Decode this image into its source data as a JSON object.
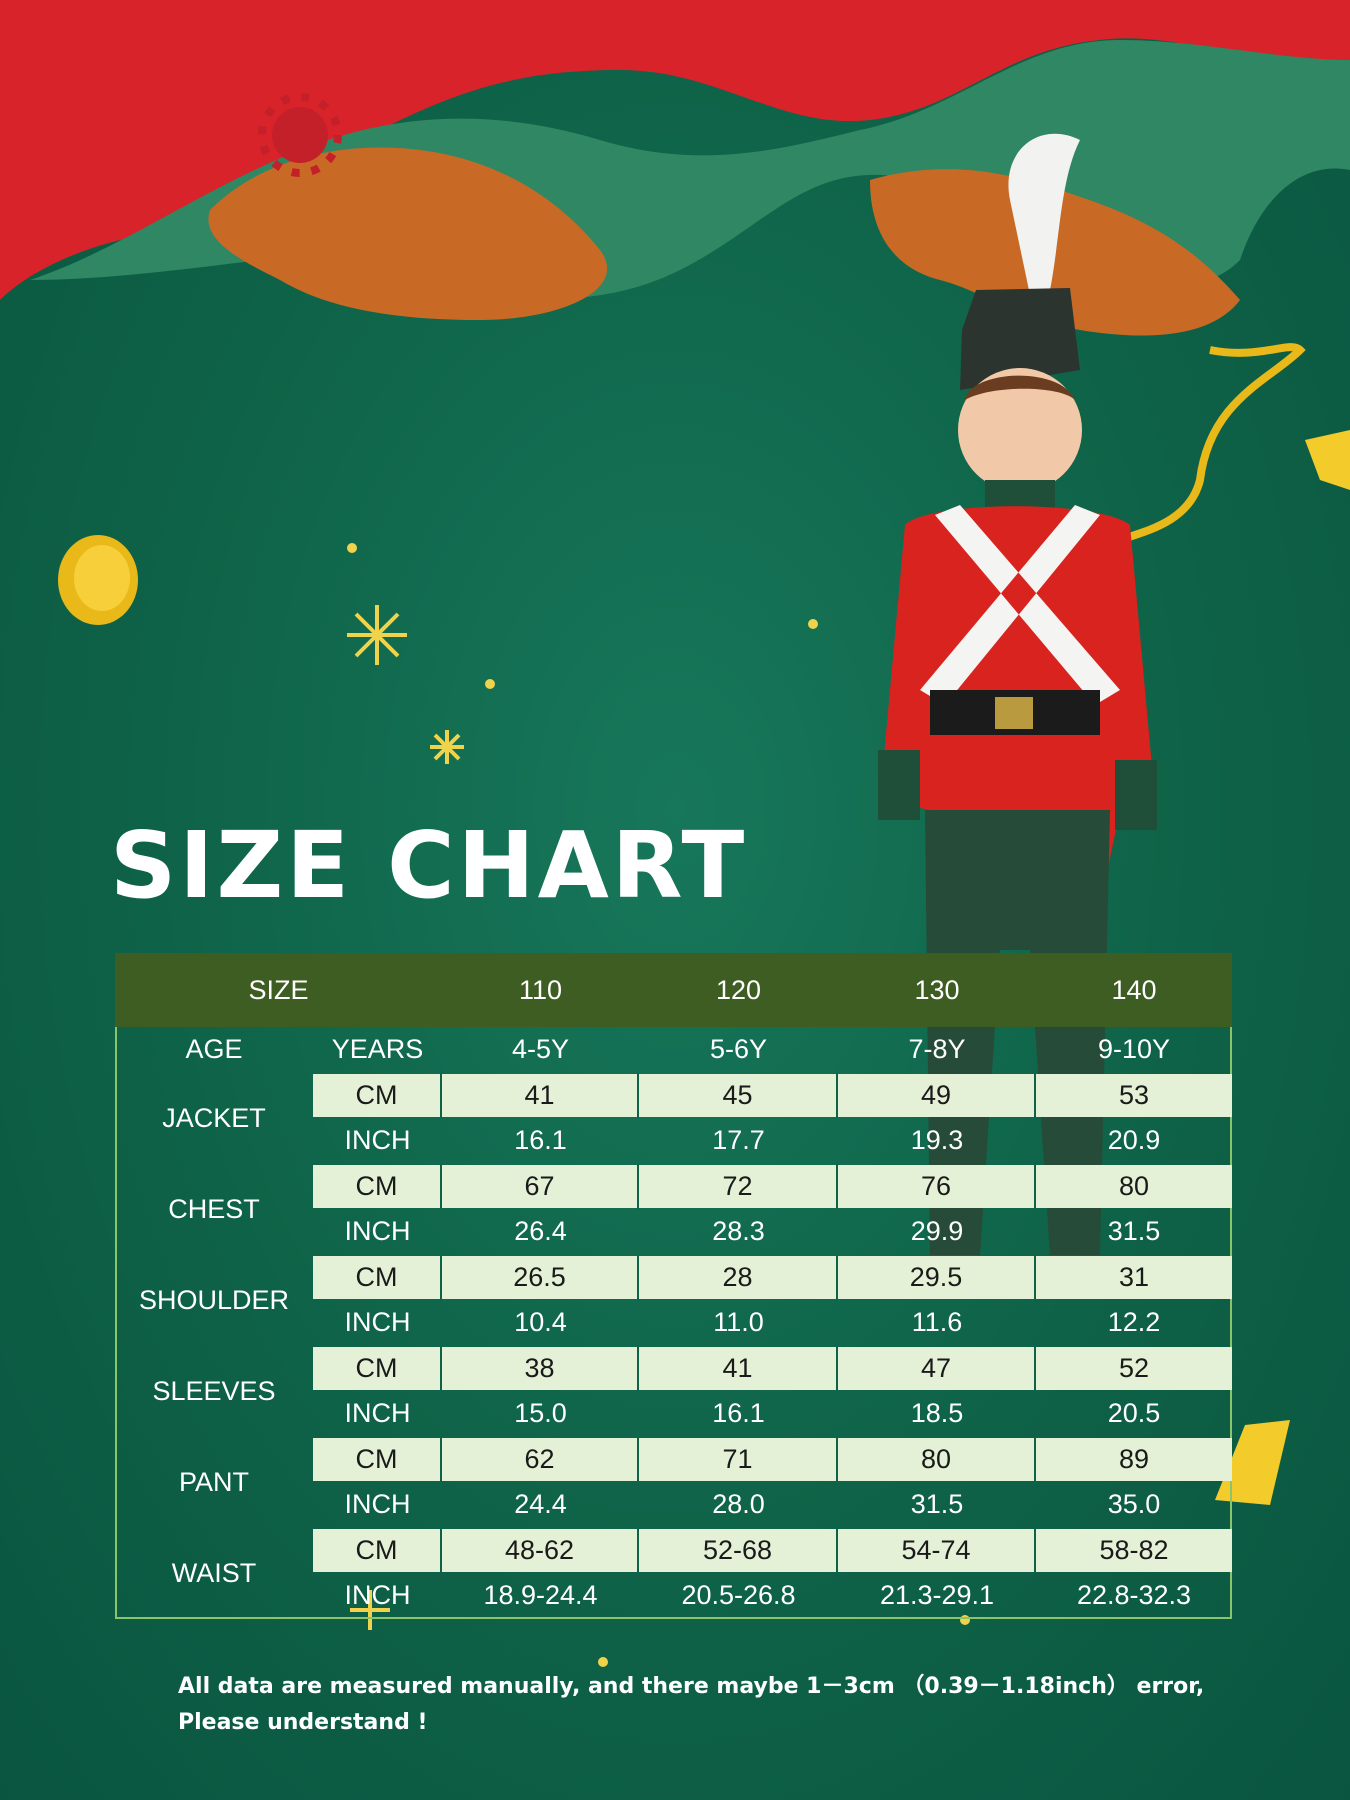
{
  "title": "SIZE CHART",
  "table": {
    "header": [
      "SIZE",
      "110",
      "120",
      "130",
      "140"
    ],
    "age": {
      "label": "AGE",
      "unit": "YEARS",
      "values": [
        "4-5Y",
        "5-6Y",
        "7-8Y",
        "9-10Y"
      ]
    },
    "groups": [
      {
        "label": "JACKET",
        "rows": [
          {
            "unit": "CM",
            "values": [
              "41",
              "45",
              "49",
              "53"
            ]
          },
          {
            "unit": "INCH",
            "values": [
              "16.1",
              "17.7",
              "19.3",
              "20.9"
            ]
          }
        ]
      },
      {
        "label": "CHEST",
        "rows": [
          {
            "unit": "CM",
            "values": [
              "67",
              "72",
              "76",
              "80"
            ]
          },
          {
            "unit": "INCH",
            "values": [
              "26.4",
              "28.3",
              "29.9",
              "31.5"
            ]
          }
        ]
      },
      {
        "label": "SHOULDER",
        "rows": [
          {
            "unit": "CM",
            "values": [
              "26.5",
              "28",
              "29.5",
              "31"
            ]
          },
          {
            "unit": "INCH",
            "values": [
              "10.4",
              "11.0",
              "11.6",
              "12.2"
            ]
          }
        ]
      },
      {
        "label": "SLEEVES",
        "rows": [
          {
            "unit": "CM",
            "values": [
              "38",
              "41",
              "47",
              "52"
            ]
          },
          {
            "unit": "INCH",
            "values": [
              "15.0",
              "16.1",
              "18.5",
              "20.5"
            ]
          }
        ]
      },
      {
        "label": "PANT",
        "rows": [
          {
            "unit": "CM",
            "values": [
              "62",
              "71",
              "80",
              "89"
            ]
          },
          {
            "unit": "INCH",
            "values": [
              "24.4",
              "28.0",
              "31.5",
              "35.0"
            ]
          }
        ]
      },
      {
        "label": "WAIST",
        "rows": [
          {
            "unit": "CM",
            "values": [
              "48-62",
              "52-68",
              "54-74",
              "58-82"
            ]
          },
          {
            "unit": "INCH",
            "values": [
              "18.9-24.4",
              "20.5-26.8",
              "21.3-29.1",
              "22.8-32.3"
            ]
          }
        ]
      }
    ]
  },
  "note": [
    "All data are measured manually, and there maybe 1－3cm （0.39－1.18inch） error,",
    "Please understand !"
  ]
}
